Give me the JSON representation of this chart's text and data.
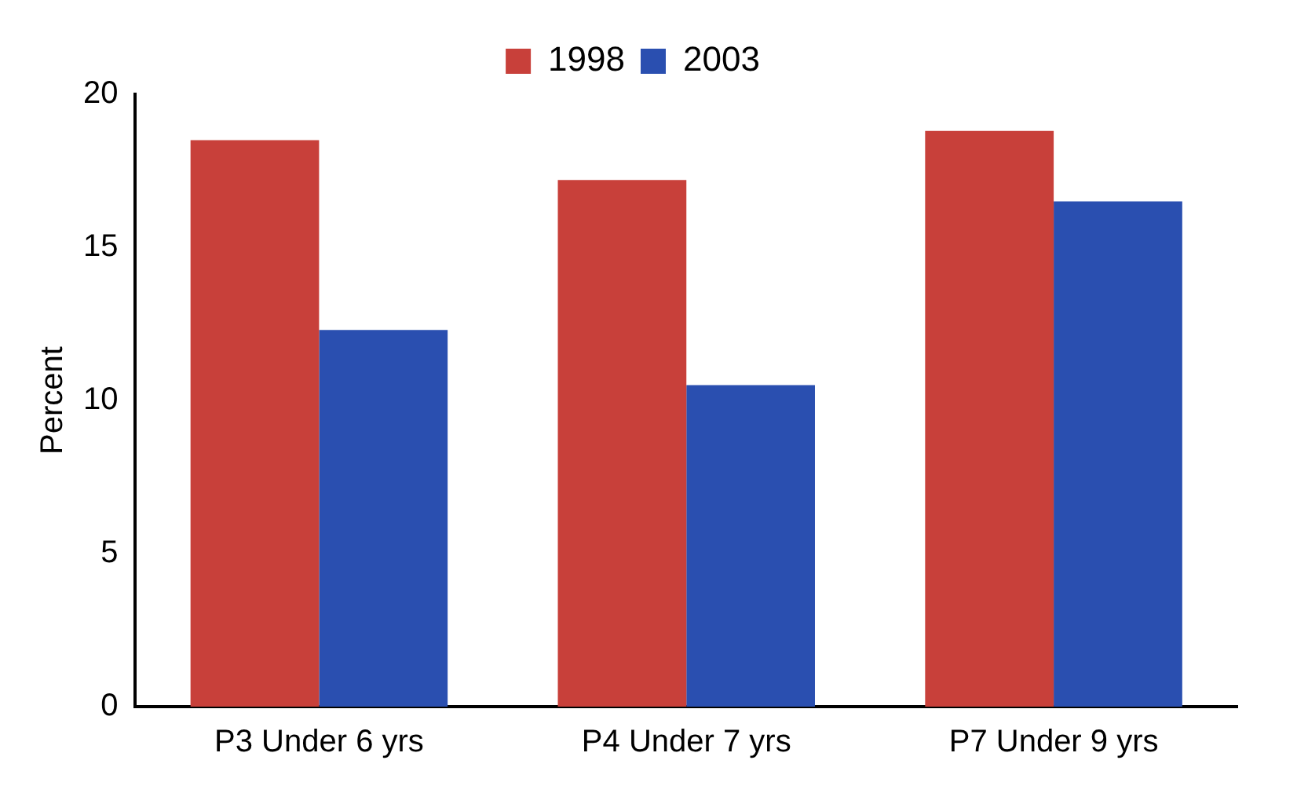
{
  "chart_data": {
    "type": "bar",
    "ylabel": "Percent",
    "categories": [
      "P3 Under 6 yrs",
      "P4 Under 7 yrs",
      "P7 Under 9 yrs"
    ],
    "series": [
      {
        "name": "1998",
        "color": "#c8403a",
        "values": [
          18.5,
          17.2,
          18.8
        ]
      },
      {
        "name": "2003",
        "color": "#2a4fb0",
        "values": [
          12.3,
          10.5,
          16.5
        ]
      }
    ],
    "ylim": [
      0,
      20
    ],
    "yticks": [
      0,
      5,
      10,
      15,
      20
    ],
    "grid": false,
    "legend": "top"
  }
}
